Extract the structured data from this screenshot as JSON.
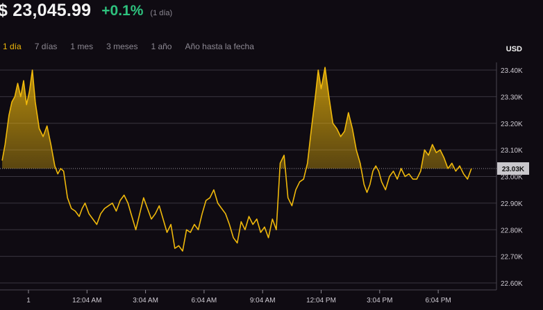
{
  "header": {
    "price": "$ 23,045.99",
    "change": "+0.1%",
    "period": "(1 día)"
  },
  "tabs": [
    {
      "label": "1 día",
      "active": true
    },
    {
      "label": "7 días",
      "active": false
    },
    {
      "label": "1 mes",
      "active": false
    },
    {
      "label": "3 meses",
      "active": false
    },
    {
      "label": "1 año",
      "active": false
    },
    {
      "label": "Año hasta la fecha",
      "active": false
    }
  ],
  "currency_label": "USD",
  "colors": {
    "line": "#f0b90b",
    "positive": "#2ec27e",
    "background": "#0f0b12",
    "grid": "#3a3640"
  },
  "chart_data": {
    "type": "line",
    "title": "",
    "xlabel": "",
    "ylabel": "",
    "ylim": [
      22.6,
      23.4
    ],
    "baseline": 23.03,
    "current_label": "23.03K",
    "y_ticks": [
      {
        "value": 23.4,
        "label": "23.40K"
      },
      {
        "value": 23.3,
        "label": "23.30K"
      },
      {
        "value": 23.2,
        "label": "23.20K"
      },
      {
        "value": 23.1,
        "label": "23.10K"
      },
      {
        "value": 23.0,
        "label": "23.00K"
      },
      {
        "value": 22.9,
        "label": "22.90K"
      },
      {
        "value": 22.8,
        "label": "22.80K"
      },
      {
        "value": 22.7,
        "label": "22.70K"
      },
      {
        "value": 22.6,
        "label": "22.60K"
      }
    ],
    "x_ticks": [
      {
        "hour": 0,
        "label": "1"
      },
      {
        "hour": 3,
        "label": "12:04 AM"
      },
      {
        "hour": 6,
        "label": "3:04 AM"
      },
      {
        "hour": 9,
        "label": "6:04 AM"
      },
      {
        "hour": 12,
        "label": "9:04 AM"
      },
      {
        "hour": 15,
        "label": "12:04 PM"
      },
      {
        "hour": 18,
        "label": "3:04 PM"
      },
      {
        "hour": 21,
        "label": "6:04 PM"
      }
    ],
    "grid": true,
    "series": [
      {
        "hours": [
          -1.35,
          -1.2,
          -1.0,
          -0.85,
          -0.7,
          -0.55,
          -0.4,
          -0.25,
          -0.1,
          0.05,
          0.2,
          0.35,
          0.55,
          0.75,
          0.95,
          1.15,
          1.35,
          1.5,
          1.65,
          1.8,
          2.0,
          2.2,
          2.4,
          2.6,
          2.75,
          2.9,
          3.1,
          3.3,
          3.5,
          3.7,
          3.9,
          4.1,
          4.3,
          4.5,
          4.7,
          4.9,
          5.1,
          5.3,
          5.5,
          5.7,
          5.9,
          6.1,
          6.3,
          6.5,
          6.7,
          6.9,
          7.1,
          7.3,
          7.5,
          7.7,
          7.9,
          8.1,
          8.3,
          8.5,
          8.7,
          8.9,
          9.1,
          9.3,
          9.5,
          9.7,
          9.9,
          10.1,
          10.3,
          10.5,
          10.7,
          10.9,
          11.1,
          11.3,
          11.5,
          11.7,
          11.9,
          12.1,
          12.3,
          12.5,
          12.7,
          12.9,
          13.1,
          13.3,
          13.5,
          13.7,
          13.9,
          14.1,
          14.3,
          14.5,
          14.7,
          14.85,
          15.0,
          15.2,
          15.4,
          15.6,
          15.8,
          16.0,
          16.2,
          16.4,
          16.6,
          16.8,
          17.0,
          17.2,
          17.35,
          17.5,
          17.65,
          17.8,
          17.95,
          18.1,
          18.3,
          18.5,
          18.7,
          18.9,
          19.1,
          19.3,
          19.5,
          19.7,
          19.9,
          20.1,
          20.3,
          20.5,
          20.7,
          20.9,
          21.1,
          21.3,
          21.5,
          21.7,
          21.9,
          22.1,
          22.3,
          22.5,
          22.7
        ],
        "values": [
          23.06,
          23.12,
          23.23,
          23.28,
          23.3,
          23.35,
          23.3,
          23.36,
          23.27,
          23.32,
          23.4,
          23.28,
          23.18,
          23.15,
          23.19,
          23.12,
          23.04,
          23.01,
          23.03,
          23.02,
          22.92,
          22.88,
          22.87,
          22.85,
          22.88,
          22.9,
          22.86,
          22.84,
          22.82,
          22.86,
          22.88,
          22.89,
          22.9,
          22.87,
          22.91,
          22.93,
          22.9,
          22.85,
          22.8,
          22.86,
          22.92,
          22.88,
          22.84,
          22.86,
          22.89,
          22.84,
          22.79,
          22.82,
          22.73,
          22.74,
          22.72,
          22.8,
          22.79,
          22.82,
          22.8,
          22.86,
          22.91,
          22.92,
          22.95,
          22.9,
          22.88,
          22.86,
          22.82,
          22.77,
          22.75,
          22.83,
          22.8,
          22.85,
          22.82,
          22.84,
          22.79,
          22.81,
          22.77,
          22.84,
          22.8,
          23.05,
          23.08,
          22.92,
          22.89,
          22.95,
          22.98,
          22.99,
          23.05,
          23.18,
          23.3,
          23.4,
          23.33,
          23.41,
          23.3,
          23.2,
          23.18,
          23.15,
          23.17,
          23.24,
          23.18,
          23.1,
          23.05,
          22.97,
          22.94,
          22.97,
          23.02,
          23.04,
          23.02,
          22.98,
          22.95,
          23.0,
          23.02,
          22.99,
          23.03,
          23.0,
          23.01,
          22.99,
          22.99,
          23.02,
          23.1,
          23.08,
          23.12,
          23.09,
          23.1,
          23.07,
          23.03,
          23.05,
          23.02,
          23.04,
          23.01,
          22.99,
          23.03
        ]
      }
    ]
  }
}
